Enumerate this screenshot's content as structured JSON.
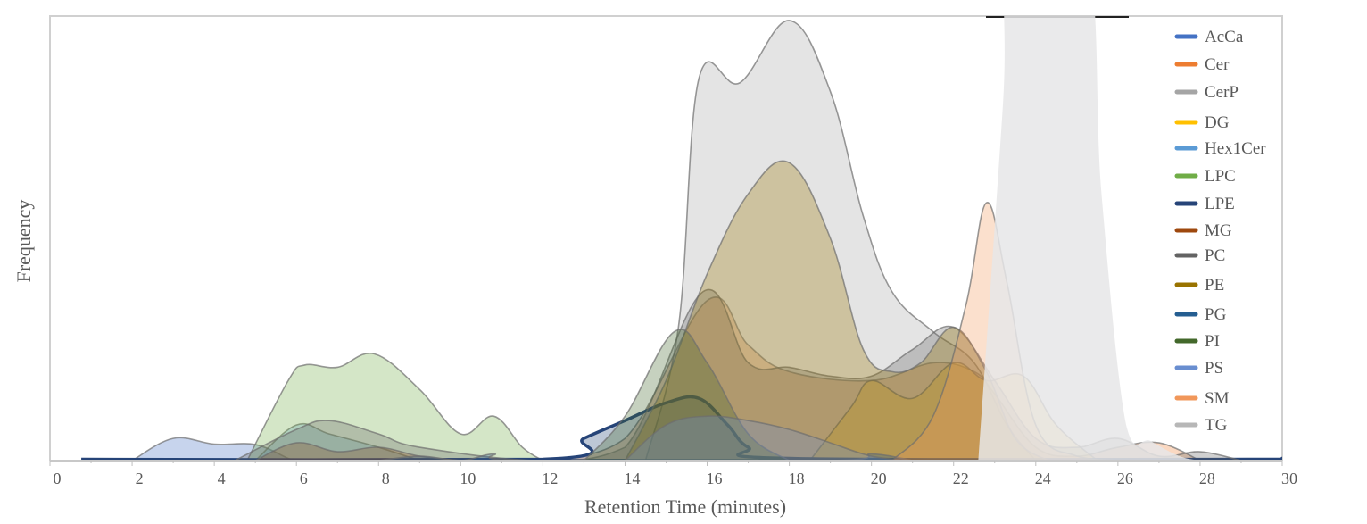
{
  "chart_data": {
    "type": "area",
    "title": "",
    "xlabel": "Retention Time (minutes)",
    "ylabel": "Frequency",
    "xlim": [
      0,
      30
    ],
    "ylim": [
      0,
      100
    ],
    "xticks": [
      0,
      2,
      4,
      6,
      8,
      10,
      12,
      14,
      16,
      18,
      20,
      22,
      24,
      26,
      28,
      30
    ],
    "grid": false,
    "legend_position": "right",
    "series": [
      {
        "name": "AcCa",
        "color": "#4472c4",
        "points": [
          [
            2,
            0
          ],
          [
            3,
            5
          ],
          [
            4,
            3.7
          ],
          [
            5,
            3.6
          ],
          [
            5.8,
            0.5
          ],
          [
            6,
            0
          ]
        ]
      },
      {
        "name": "Cer",
        "color": "#ed7d31",
        "points": [
          [
            12,
            0
          ],
          [
            14,
            5
          ],
          [
            16,
            36
          ],
          [
            17,
            26
          ],
          [
            18,
            20
          ],
          [
            20,
            18
          ],
          [
            21.5,
            22
          ],
          [
            22.5,
            20
          ],
          [
            23,
            15
          ],
          [
            24,
            3
          ],
          [
            25,
            1
          ],
          [
            26,
            3
          ],
          [
            27,
            4
          ],
          [
            28,
            0
          ]
        ]
      },
      {
        "name": "CerP",
        "color": "#a5a5a5",
        "points": [
          [
            14.5,
            0
          ],
          [
            15.3,
            30
          ],
          [
            15.8,
            86
          ],
          [
            16.8,
            85
          ],
          [
            18,
            99
          ],
          [
            19,
            83
          ],
          [
            19.8,
            55
          ],
          [
            20.5,
            38
          ],
          [
            21.5,
            29
          ],
          [
            22.5,
            22
          ],
          [
            23.3,
            8
          ],
          [
            24,
            0
          ]
        ]
      },
      {
        "name": "DG",
        "color": "#ffc000",
        "points": [
          [
            18.5,
            0
          ],
          [
            19.5,
            12
          ],
          [
            20,
            18
          ],
          [
            21,
            14
          ],
          [
            22,
            22
          ],
          [
            22.8,
            18
          ],
          [
            23.7,
            19
          ],
          [
            24.5,
            8
          ],
          [
            25.5,
            0
          ]
        ]
      },
      {
        "name": "Hex1Cer",
        "color": "#5b9bd5",
        "points": [
          [
            5,
            0
          ],
          [
            6,
            8
          ],
          [
            6.8,
            6
          ],
          [
            8,
            3
          ],
          [
            9,
            0
          ]
        ]
      },
      {
        "name": "LPC",
        "color": "#70ad47",
        "points": [
          [
            4.8,
            0
          ],
          [
            5.8,
            18
          ],
          [
            6.2,
            21.5
          ],
          [
            7,
            21
          ],
          [
            7.9,
            24
          ],
          [
            9,
            16
          ],
          [
            10,
            6
          ],
          [
            10.8,
            10
          ],
          [
            11.5,
            3
          ],
          [
            12,
            0
          ]
        ]
      },
      {
        "name": "LPE",
        "color": "#264478",
        "points": [
          [
            0.8,
            0.3
          ],
          [
            12,
            0.3
          ],
          [
            13,
            5
          ],
          [
            14,
            9
          ],
          [
            15,
            13
          ],
          [
            15.8,
            14
          ],
          [
            16.5,
            8
          ],
          [
            17,
            3
          ],
          [
            18,
            0.5
          ],
          [
            29.5,
            0.3
          ],
          [
            30,
            0.5
          ]
        ]
      },
      {
        "name": "MG",
        "color": "#9e480e",
        "points": [
          [
            5,
            0
          ],
          [
            6,
            4
          ],
          [
            7,
            2
          ],
          [
            8,
            3
          ],
          [
            9,
            1
          ],
          [
            10,
            0
          ]
        ]
      },
      {
        "name": "PC",
        "color": "#636363",
        "points": [
          [
            4.5,
            0
          ],
          [
            6,
            7
          ],
          [
            6.8,
            9
          ],
          [
            8,
            6
          ],
          [
            9,
            3
          ],
          [
            12,
            0
          ],
          [
            14,
            3
          ],
          [
            15.9,
            38
          ],
          [
            17,
            22
          ],
          [
            18,
            21
          ],
          [
            19,
            19
          ],
          [
            20,
            19
          ],
          [
            21,
            25
          ],
          [
            22,
            30
          ],
          [
            23,
            18
          ],
          [
            24,
            5
          ],
          [
            25,
            3
          ],
          [
            26,
            5
          ],
          [
            27,
            1
          ],
          [
            28,
            2
          ],
          [
            29,
            0
          ]
        ]
      },
      {
        "name": "PE",
        "color": "#997300",
        "points": [
          [
            14,
            0
          ],
          [
            15,
            18
          ],
          [
            16,
            42
          ],
          [
            17,
            60
          ],
          [
            18,
            67
          ],
          [
            19,
            50
          ],
          [
            19.8,
            25
          ],
          [
            20.5,
            20
          ],
          [
            21.2,
            22
          ],
          [
            22,
            30
          ],
          [
            22.8,
            20
          ],
          [
            23.5,
            5
          ],
          [
            24.3,
            0
          ]
        ]
      },
      {
        "name": "PG",
        "color": "#255e91",
        "points": [
          [
            8,
            0
          ],
          [
            9,
            1
          ],
          [
            10,
            0
          ],
          [
            10.8,
            1.5
          ],
          [
            11.5,
            0
          ],
          [
            19,
            0
          ],
          [
            20,
            1.5
          ],
          [
            21,
            0
          ]
        ]
      },
      {
        "name": "PI",
        "color": "#43682b",
        "points": [
          [
            13,
            0
          ],
          [
            14,
            10
          ],
          [
            15.2,
            29
          ],
          [
            16,
            22
          ],
          [
            17,
            6
          ],
          [
            18,
            0
          ]
        ]
      },
      {
        "name": "PS",
        "color": "#698ed0",
        "points": [
          [
            14,
            0
          ],
          [
            15,
            8
          ],
          [
            16,
            10
          ],
          [
            17,
            9
          ],
          [
            18,
            7
          ],
          [
            19,
            4
          ],
          [
            20,
            1
          ],
          [
            21,
            0
          ]
        ]
      },
      {
        "name": "SM",
        "color": "#f1975a",
        "points": [
          [
            20.5,
            0
          ],
          [
            21.5,
            10
          ],
          [
            22.3,
            35
          ],
          [
            22.8,
            58
          ],
          [
            23.3,
            40
          ],
          [
            24,
            8
          ],
          [
            25,
            1
          ],
          [
            26,
            0
          ]
        ]
      },
      {
        "name": "TG",
        "color": "#b7b7b7",
        "points": [
          [
            22.6,
            0
          ],
          [
            23.2,
            80
          ],
          [
            23.4,
            115
          ],
          [
            25.2,
            115
          ],
          [
            25.6,
            60
          ],
          [
            26.2,
            8
          ],
          [
            26.8,
            4.4
          ],
          [
            27.5,
            1
          ],
          [
            28,
            0
          ]
        ]
      }
    ]
  }
}
